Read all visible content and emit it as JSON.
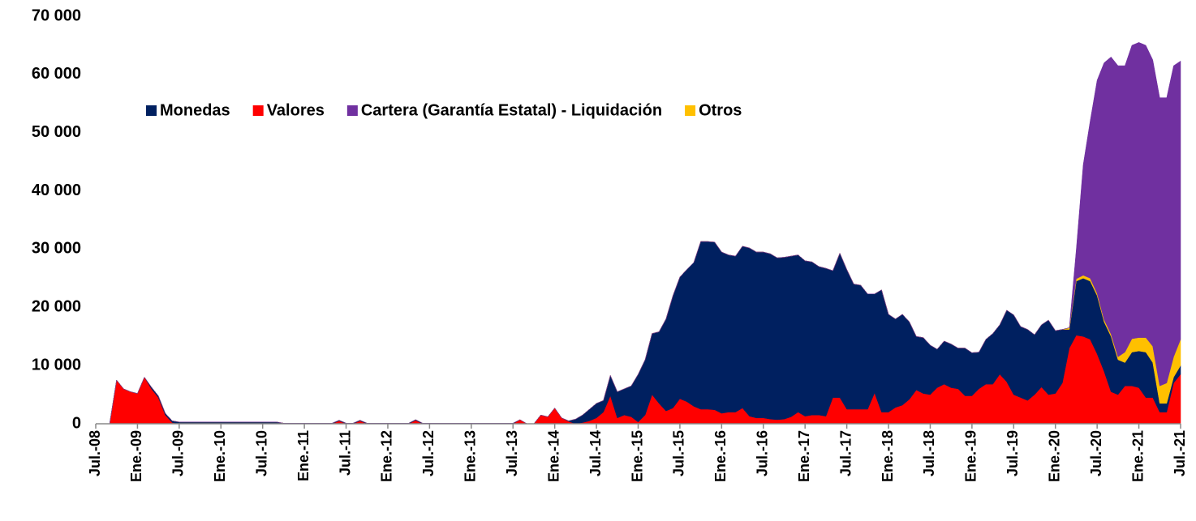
{
  "chart_data": {
    "type": "stacked_area",
    "categories": [
      "Jul.-08",
      null,
      null,
      null,
      null,
      null,
      "Ene.-09",
      null,
      null,
      null,
      null,
      null,
      "Jul.-09",
      null,
      null,
      null,
      null,
      null,
      "Ene.-10",
      null,
      null,
      null,
      null,
      null,
      "Jul.-10",
      null,
      null,
      null,
      null,
      null,
      "Ene.-11",
      null,
      null,
      null,
      null,
      null,
      "Jul.-11",
      null,
      null,
      null,
      null,
      null,
      "Ene.-12",
      null,
      null,
      null,
      null,
      null,
      "Jul.-12",
      null,
      null,
      null,
      null,
      null,
      "Ene.-13",
      null,
      null,
      null,
      null,
      null,
      "Jul.-13",
      null,
      null,
      null,
      null,
      null,
      "Ene.-14",
      null,
      null,
      null,
      null,
      null,
      "Jul.-14",
      null,
      null,
      null,
      null,
      null,
      "Ene.-15",
      null,
      null,
      null,
      null,
      null,
      "Jul.-15",
      null,
      null,
      null,
      null,
      null,
      "Ene.-16",
      null,
      null,
      null,
      null,
      null,
      "Jul.-16",
      null,
      null,
      null,
      null,
      null,
      "Ene.-17",
      null,
      null,
      null,
      null,
      null,
      "Jul.-17",
      null,
      null,
      null,
      null,
      null,
      "Ene.-18",
      null,
      null,
      null,
      null,
      null,
      "Jul.-18",
      null,
      null,
      null,
      null,
      null,
      "Ene.-19",
      null,
      null,
      null,
      null,
      null,
      "Jul.-19",
      null,
      null,
      null,
      null,
      null,
      "Ene.-20",
      null,
      null,
      null,
      null,
      null,
      "Jul.-20",
      null,
      null,
      null,
      null,
      null,
      "Ene.-21",
      null,
      null,
      null,
      null,
      null,
      "Jul.-21"
    ],
    "series": [
      {
        "name": "Monedas",
        "color": "#002060",
        "values": [
          0,
          0,
          0,
          0,
          0,
          0,
          0,
          0,
          300,
          300,
          300,
          300,
          300,
          300,
          300,
          300,
          300,
          300,
          300,
          300,
          300,
          300,
          300,
          300,
          300,
          300,
          300,
          100,
          100,
          100,
          100,
          100,
          100,
          100,
          100,
          100,
          100,
          100,
          100,
          100,
          100,
          100,
          100,
          100,
          100,
          100,
          100,
          100,
          100,
          100,
          100,
          100,
          100,
          100,
          100,
          100,
          100,
          100,
          100,
          100,
          100,
          0,
          0,
          0,
          0,
          0,
          0,
          0,
          100,
          800,
          1300,
          2000,
          2500,
          2000,
          3500,
          4500,
          4500,
          5300,
          8200,
          9500,
          10500,
          12300,
          15800,
          19300,
          20900,
          22700,
          24700,
          28800,
          28800,
          28800,
          27700,
          27000,
          26800,
          27800,
          28900,
          28500,
          28500,
          28400,
          27800,
          27800,
          27600,
          27000,
          26700,
          26300,
          25500,
          25400,
          21800,
          24800,
          24000,
          21500,
          21300,
          19800,
          17000,
          21000,
          16800,
          15200,
          15600,
          13300,
          9200,
          9600,
          8500,
          6600,
          7400,
          7500,
          7000,
          8200,
          7400,
          6300,
          7700,
          8700,
          8500,
          12300,
          13700,
          12200,
          12200,
          10300,
          10700,
          12800,
          10800,
          9200,
          3200,
          9300,
          10000,
          10000,
          10000,
          8500,
          9500,
          6000,
          4000,
          5800,
          6300,
          7800,
          6000,
          1500,
          1500,
          1000,
          1500
        ]
      },
      {
        "name": "Valores",
        "color": "#ff0000",
        "values": [
          0,
          0,
          0,
          7500,
          6000,
          5500,
          5200,
          8000,
          6000,
          4500,
          1500,
          200,
          0,
          0,
          0,
          0,
          0,
          0,
          0,
          0,
          0,
          0,
          0,
          0,
          0,
          0,
          0,
          0,
          0,
          0,
          0,
          0,
          0,
          0,
          0,
          500,
          0,
          0,
          500,
          0,
          0,
          0,
          0,
          0,
          0,
          0,
          600,
          0,
          0,
          0,
          0,
          0,
          0,
          0,
          0,
          0,
          0,
          0,
          0,
          0,
          0,
          700,
          0,
          0,
          1500,
          1200,
          2700,
          1000,
          400,
          0,
          200,
          500,
          1000,
          2000,
          4800,
          1000,
          1500,
          1200,
          300,
          1500,
          5000,
          3500,
          2200,
          2700,
          4300,
          3800,
          3000,
          2500,
          2500,
          2400,
          1800,
          2000,
          2000,
          2700,
          1300,
          1000,
          1000,
          800,
          700,
          800,
          1200,
          2000,
          1300,
          1500,
          1500,
          1300,
          4500,
          4500,
          2500,
          2500,
          2500,
          2500,
          5300,
          2000,
          2000,
          2800,
          3200,
          4200,
          5800,
          5200,
          5000,
          6200,
          6800,
          6200,
          6000,
          4800,
          4800,
          6000,
          6800,
          6800,
          8500,
          7200,
          5000,
          4500,
          4000,
          5000,
          6300,
          5000,
          5200,
          7000,
          13000,
          15200,
          15000,
          14500,
          12000,
          9000,
          5500,
          5000,
          6500,
          6500,
          6200,
          4500,
          4500,
          2000,
          2000,
          7000,
          8500
        ]
      },
      {
        "name": "Cartera (Garantía Estatal) - Liquidación",
        "color": "#7030a0",
        "values": [
          0,
          0,
          0,
          0,
          0,
          0,
          0,
          0,
          0,
          0,
          0,
          0,
          0,
          0,
          0,
          0,
          0,
          0,
          0,
          0,
          0,
          0,
          0,
          0,
          0,
          0,
          0,
          0,
          0,
          0,
          0,
          0,
          0,
          0,
          0,
          0,
          0,
          0,
          0,
          0,
          0,
          0,
          0,
          0,
          0,
          0,
          0,
          0,
          0,
          0,
          0,
          0,
          0,
          0,
          0,
          0,
          0,
          0,
          0,
          0,
          0,
          0,
          0,
          0,
          0,
          0,
          0,
          0,
          0,
          0,
          0,
          0,
          0,
          0,
          0,
          0,
          0,
          0,
          0,
          0,
          0,
          0,
          0,
          0,
          0,
          0,
          0,
          0,
          0,
          0,
          0,
          0,
          0,
          0,
          0,
          0,
          0,
          0,
          0,
          0,
          0,
          0,
          0,
          0,
          0,
          0,
          0,
          0,
          0,
          0,
          0,
          0,
          0,
          0,
          0,
          0,
          0,
          0,
          0,
          0,
          0,
          0,
          0,
          0,
          0,
          0,
          0,
          0,
          0,
          0,
          0,
          0,
          0,
          0,
          0,
          0,
          0,
          0,
          0,
          0,
          0,
          5000,
          19000,
          27000,
          36600,
          44100,
          47600,
          50000,
          49200,
          50400,
          50700,
          50200,
          49200,
          49500,
          49000,
          50000,
          47800
        ]
      },
      {
        "name": "Otros",
        "color": "#ffc000",
        "values": [
          0,
          0,
          0,
          0,
          0,
          0,
          0,
          0,
          0,
          0,
          0,
          0,
          0,
          0,
          0,
          0,
          0,
          0,
          0,
          0,
          0,
          0,
          0,
          0,
          0,
          0,
          0,
          0,
          0,
          0,
          0,
          0,
          0,
          0,
          0,
          0,
          0,
          0,
          0,
          0,
          0,
          0,
          0,
          0,
          0,
          0,
          0,
          0,
          0,
          0,
          0,
          0,
          0,
          0,
          0,
          0,
          0,
          0,
          0,
          0,
          0,
          0,
          0,
          0,
          0,
          0,
          0,
          0,
          0,
          0,
          0,
          0,
          0,
          0,
          0,
          0,
          0,
          0,
          0,
          0,
          0,
          0,
          0,
          0,
          0,
          0,
          0,
          0,
          0,
          0,
          0,
          0,
          0,
          0,
          0,
          0,
          0,
          0,
          0,
          0,
          0,
          0,
          0,
          0,
          0,
          0,
          0,
          0,
          0,
          0,
          0,
          0,
          0,
          0,
          0,
          0,
          0,
          0,
          0,
          0,
          0,
          0,
          0,
          0,
          0,
          0,
          0,
          0,
          0,
          0,
          0,
          0,
          0,
          0,
          0,
          0,
          0,
          0,
          0,
          0,
          300,
          400,
          500,
          500,
          400,
          400,
          400,
          500,
          1800,
          2300,
          2300,
          2500,
          2800,
          3000,
          3500,
          3500,
          4500
        ]
      }
    ],
    "ylim": [
      0,
      70000
    ],
    "yticks": [
      0,
      {
        "value": 10000,
        "label": "10 000"
      },
      {
        "value": 20000,
        "label": "20 000"
      },
      {
        "value": 30000,
        "label": "30 000"
      },
      {
        "value": 40000,
        "label": "40 000"
      },
      {
        "value": 50000,
        "label": "50 000"
      },
      {
        "value": 60000,
        "label": "60 000"
      },
      {
        "value": 70000,
        "label": "70 000"
      }
    ],
    "grid": false
  }
}
